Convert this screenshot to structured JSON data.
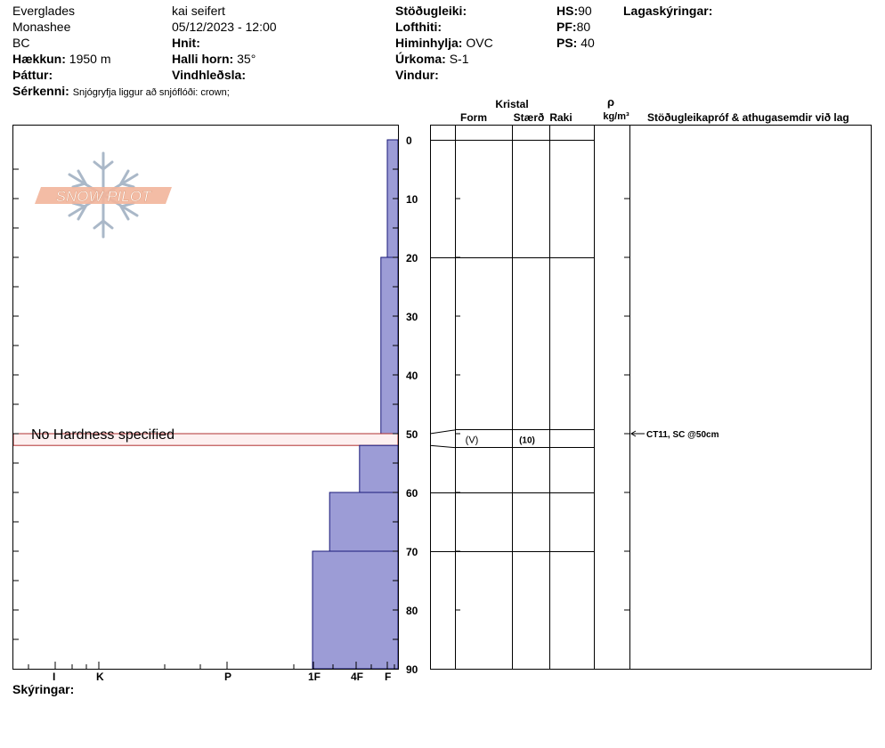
{
  "header": {
    "location": "Everglades",
    "range": "Monashee",
    "state": "BC",
    "observer": "kai seifert",
    "datetime": "05/12/2023 - 12:00",
    "elevation_label": "Hækkun:",
    "elevation_value": "1950 m",
    "aspect_label": "Þáttur:",
    "coords_label": "Hnit:",
    "slope_label": "Halli horn:",
    "slope_value": "35°",
    "wind_loading_label": "Vindhleðsla:",
    "stability_label": "Stöðugleiki:",
    "air_temp_label": "Lofthiti:",
    "sky_label": "Himinhylja:",
    "sky_value": "OVC",
    "precip_label": "Úrkoma:",
    "precip_value": "S-1",
    "wind_label": "Vindur:",
    "hs_label": "HS:",
    "hs_value": "90",
    "pf_label": "PF:",
    "pf_value": "80",
    "ps_label": "PS:",
    "ps_value": "40",
    "layer_notes_label": "Lagaskýringar:",
    "features_label": "Sérkenni:",
    "features_value": "Snjógryfja liggur að snjóflóði: crown;",
    "notes_label": "Skýringar:"
  },
  "logo": {
    "text": "SNOW PILOT"
  },
  "table_headers": {
    "crystal": "Kristal",
    "form": "Form",
    "size": "Stærð",
    "moisture": "Raki",
    "rho": "ρ",
    "density_unit": "kg/m³",
    "comments": "Stöðugleikapróf & athugasemdir við lag"
  },
  "colors": {
    "hardness_fill": "#9c9cd6",
    "hardness_stroke": "#1a1a7a",
    "no_hardness_fill": "#fdf0f0",
    "no_hardness_stroke": "#b03030",
    "logo_orange": "#f2b59b",
    "logo_blue": "#aab8c8"
  },
  "chart_data": {
    "type": "bar",
    "orientation": "horizontal",
    "depth_axis": {
      "min": 0,
      "max": 90,
      "ticks": [
        0,
        10,
        20,
        30,
        40,
        50,
        60,
        70,
        80,
        90
      ]
    },
    "hardness_ticks": [
      "I",
      "K",
      "P",
      "1F",
      "4F",
      "F"
    ],
    "layers": [
      {
        "top": 0,
        "bottom": 20,
        "hardness": "F",
        "hardness_index": 0.25
      },
      {
        "top": 20,
        "bottom": 50,
        "hardness": "F",
        "hardness_index": 0.4
      },
      {
        "top": 50,
        "bottom": 52,
        "hardness": null,
        "label": "No Hardness specified"
      },
      {
        "top": 52,
        "bottom": 60,
        "hardness": "4F",
        "hardness_index": 0.9
      },
      {
        "top": 60,
        "bottom": 70,
        "hardness": "4F-1F",
        "hardness_index": 1.6
      },
      {
        "top": 70,
        "bottom": 90,
        "hardness": "1F",
        "hardness_index": 2.0
      }
    ],
    "table_lines": [
      0,
      20,
      49.3,
      52.3,
      60,
      70
    ],
    "grain": {
      "form": "(V)",
      "size": "(10)",
      "depth": 51
    },
    "test": {
      "text": "CT11, SC @50cm",
      "depth": 50
    }
  }
}
